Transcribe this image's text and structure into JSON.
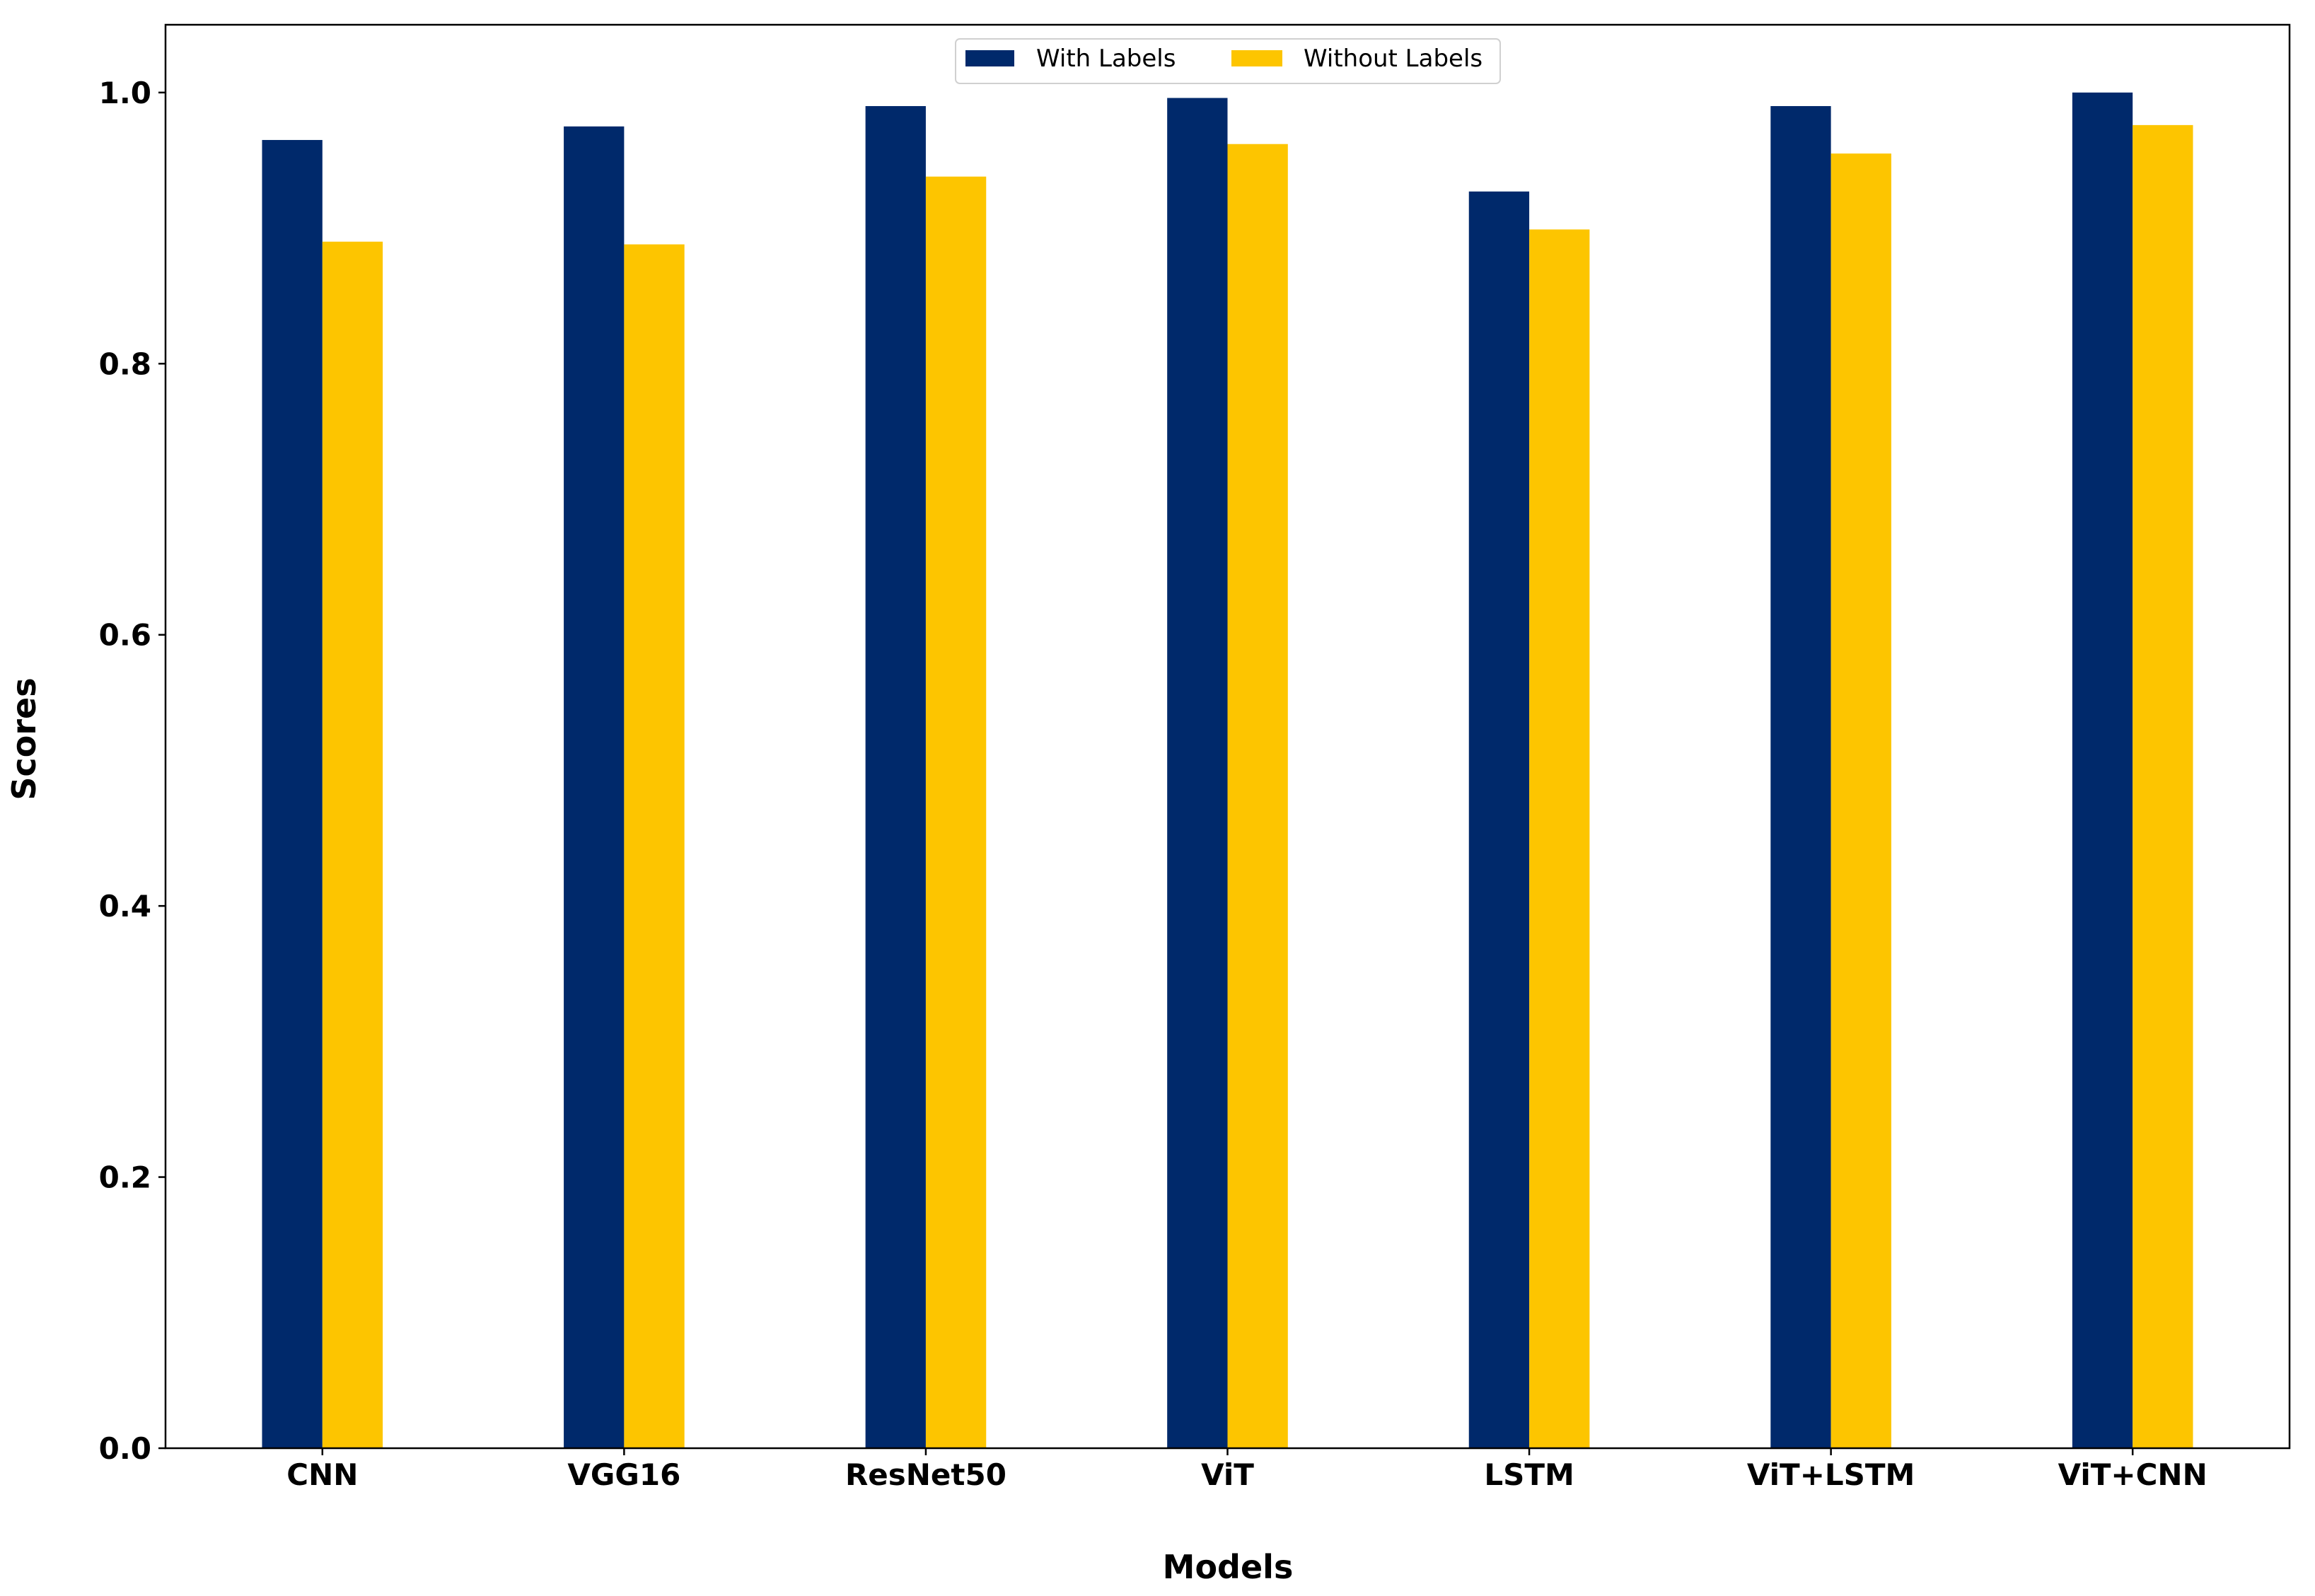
{
  "chart_data": {
    "type": "bar",
    "title": "",
    "xlabel": "Models",
    "ylabel": "Scores",
    "categories": [
      "CNN",
      "VGG16",
      "ResNet50",
      "ViT",
      "LSTM",
      "ViT+LSTM",
      "ViT+CNN"
    ],
    "series": [
      {
        "name": "With Labels",
        "color": "#00296b",
        "values": [
          0.965,
          0.975,
          0.99,
          0.996,
          0.927,
          0.99,
          1.0
        ]
      },
      {
        "name": "Without Labels",
        "color": "#fdc500",
        "values": [
          0.89,
          0.888,
          0.938,
          0.962,
          0.899,
          0.955,
          0.976
        ]
      }
    ],
    "ylim": [
      0,
      1.05
    ],
    "yticks": [
      "0.0",
      "0.2",
      "0.4",
      "0.6",
      "0.8",
      "1.0"
    ],
    "grid": false,
    "legend_position": "top-center"
  }
}
